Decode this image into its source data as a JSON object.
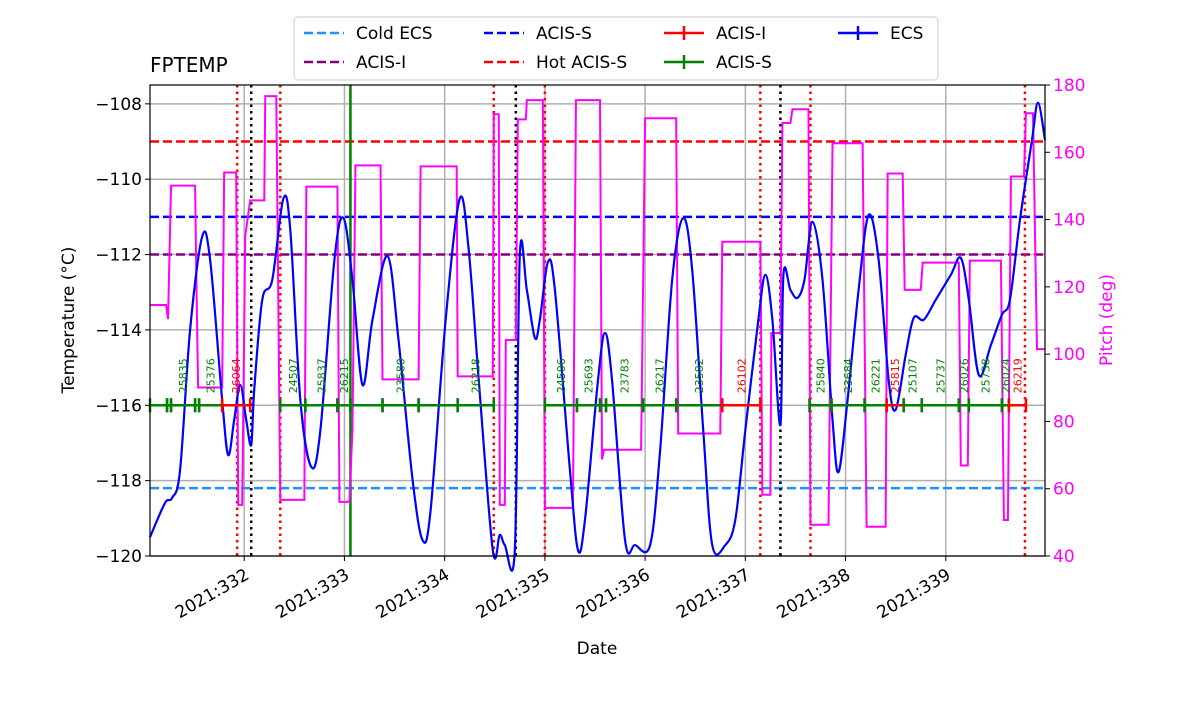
{
  "chart_data": {
    "type": "line",
    "title": "FPTEMP",
    "xlabel": "Date",
    "ylabel": "Temperature ($^\\circ$C)",
    "ylabel_display": "Temperature (°C)",
    "y2label": "Pitch (deg)",
    "xlim": [
      331.06,
      339.99
    ],
    "ylim": [
      -120,
      -107.5
    ],
    "y2lim": [
      40,
      180
    ],
    "grid": true,
    "legend_placement": "top-center",
    "xticks": [
      {
        "v": 332,
        "label": "2021:332"
      },
      {
        "v": 333,
        "label": "2021:333"
      },
      {
        "v": 334,
        "label": "2021:334"
      },
      {
        "v": 335,
        "label": "2021:335"
      },
      {
        "v": 336,
        "label": "2021:336"
      },
      {
        "v": 337,
        "label": "2021:337"
      },
      {
        "v": 338,
        "label": "2021:338"
      },
      {
        "v": 339,
        "label": "2021:339"
      }
    ],
    "yticks": [
      -120,
      -118,
      -116,
      -114,
      -112,
      -110,
      -108
    ],
    "ytick_labels": [
      "−120",
      "−118",
      "−116",
      "−114",
      "−112",
      "−110",
      "−108"
    ],
    "y2ticks": [
      40,
      60,
      80,
      100,
      120,
      140,
      160,
      180
    ],
    "colors": {
      "ecs": "#0000ff",
      "pitch": "#ff00ff",
      "cold_ecs": "#1e90ff",
      "acis_s_limit": "#0000ff",
      "acis_i_limit": "#800080",
      "hot_acis_s": "#ff0000",
      "acis_i_obs": "#ff0000",
      "acis_s_obs": "#008000",
      "grid": "#b0b0b0"
    },
    "limits": [
      {
        "name": "Cold ECS",
        "value": -118.2,
        "color": "#1e90ff"
      },
      {
        "name": "ACIS-S",
        "value": -111,
        "color": "#0000ff"
      },
      {
        "name": "ACIS-I",
        "value": -112,
        "color": "#800080"
      },
      {
        "name": "Hot ACIS-S",
        "value": -109,
        "color": "#ff0000"
      }
    ],
    "legend": [
      {
        "label": "Cold ECS",
        "color": "#1e90ff",
        "style": "dashed"
      },
      {
        "label": "ACIS-I",
        "color": "#800080",
        "style": "dashed"
      },
      {
        "label": "ACIS-S",
        "color": "#0000ff",
        "style": "dashed"
      },
      {
        "label": "Hot ACIS-S",
        "color": "#ff0000",
        "style": "dashed"
      },
      {
        "label": "ACIS-I",
        "color": "#ff0000",
        "style": "errorbar"
      },
      {
        "label": "ACIS-S",
        "color": "#008000",
        "style": "errorbar"
      },
      {
        "label": "ECS",
        "color": "#0000ff",
        "style": "errorbar"
      }
    ],
    "ecs_temperature": [
      [
        331.06,
        -119.5
      ],
      [
        331.21,
        -118.59
      ],
      [
        331.28,
        -118.46
      ],
      [
        331.36,
        -117.72
      ],
      [
        331.46,
        -114.0
      ],
      [
        331.58,
        -111.53
      ],
      [
        331.66,
        -112.14
      ],
      [
        331.78,
        -115.86
      ],
      [
        331.84,
        -117.32
      ],
      [
        331.9,
        -116.39
      ],
      [
        331.96,
        -115.46
      ],
      [
        332.02,
        -116.39
      ],
      [
        332.07,
        -117.05
      ],
      [
        332.1,
        -115.59
      ],
      [
        332.18,
        -113.2
      ],
      [
        332.28,
        -112.67
      ],
      [
        332.39,
        -110.52
      ],
      [
        332.46,
        -111.35
      ],
      [
        332.56,
        -115.86
      ],
      [
        332.67,
        -117.64
      ],
      [
        332.76,
        -116.66
      ],
      [
        332.9,
        -112.14
      ],
      [
        332.99,
        -111.03
      ],
      [
        333.08,
        -112.67
      ],
      [
        333.18,
        -115.46
      ],
      [
        333.28,
        -113.73
      ],
      [
        333.43,
        -112.04
      ],
      [
        333.54,
        -114.27
      ],
      [
        333.68,
        -117.98
      ],
      [
        333.78,
        -119.58
      ],
      [
        333.86,
        -118.78
      ],
      [
        334.01,
        -113.73
      ],
      [
        334.15,
        -110.52
      ],
      [
        334.24,
        -111.88
      ],
      [
        334.34,
        -115.33
      ],
      [
        334.48,
        -119.84
      ],
      [
        334.55,
        -119.44
      ],
      [
        334.6,
        -119.71
      ],
      [
        334.7,
        -119.84
      ],
      [
        334.75,
        -112.01
      ],
      [
        334.82,
        -112.94
      ],
      [
        334.9,
        -114.21
      ],
      [
        334.95,
        -113.73
      ],
      [
        335.03,
        -112.2
      ],
      [
        335.1,
        -112.94
      ],
      [
        335.25,
        -117.72
      ],
      [
        335.33,
        -119.84
      ],
      [
        335.4,
        -119.04
      ],
      [
        335.53,
        -115.33
      ],
      [
        335.6,
        -114.08
      ],
      [
        335.67,
        -115.33
      ],
      [
        335.8,
        -119.58
      ],
      [
        335.9,
        -119.71
      ],
      [
        336.05,
        -119.71
      ],
      [
        336.15,
        -117.19
      ],
      [
        336.27,
        -112.67
      ],
      [
        336.38,
        -111.03
      ],
      [
        336.47,
        -112.41
      ],
      [
        336.58,
        -116.66
      ],
      [
        336.67,
        -119.71
      ],
      [
        336.8,
        -119.71
      ],
      [
        336.9,
        -119.04
      ],
      [
        337.0,
        -116.66
      ],
      [
        337.13,
        -113.73
      ],
      [
        337.2,
        -112.54
      ],
      [
        337.27,
        -113.73
      ],
      [
        337.35,
        -116.52
      ],
      [
        337.38,
        -112.54
      ],
      [
        337.45,
        -112.94
      ],
      [
        337.52,
        -113.15
      ],
      [
        337.59,
        -112.67
      ],
      [
        337.67,
        -111.13
      ],
      [
        337.77,
        -112.67
      ],
      [
        337.87,
        -116.39
      ],
      [
        337.93,
        -117.77
      ],
      [
        338.02,
        -115.86
      ],
      [
        338.13,
        -112.94
      ],
      [
        338.23,
        -110.95
      ],
      [
        338.33,
        -112.14
      ],
      [
        338.43,
        -115.33
      ],
      [
        338.5,
        -116.12
      ],
      [
        338.6,
        -114.66
      ],
      [
        338.68,
        -113.68
      ],
      [
        338.78,
        -113.73
      ],
      [
        338.9,
        -113.2
      ],
      [
        339.05,
        -112.54
      ],
      [
        339.15,
        -112.09
      ],
      [
        339.23,
        -113.2
      ],
      [
        339.33,
        -115.2
      ],
      [
        339.45,
        -114.4
      ],
      [
        339.56,
        -113.6
      ],
      [
        339.64,
        -113.2
      ],
      [
        339.74,
        -111.08
      ],
      [
        339.86,
        -108.96
      ],
      [
        339.92,
        -107.97
      ],
      [
        339.99,
        -108.96
      ]
    ],
    "pitch": [
      [
        331.06,
        114.6
      ],
      [
        331.22,
        114.6
      ],
      [
        331.24,
        110.4
      ],
      [
        331.27,
        150.1
      ],
      [
        331.51,
        150.1
      ],
      [
        331.52,
        127.5
      ],
      [
        331.54,
        90.1
      ],
      [
        331.78,
        90.1
      ],
      [
        331.8,
        154.0
      ],
      [
        331.92,
        154.0
      ],
      [
        331.94,
        55.2
      ],
      [
        331.98,
        55.2
      ],
      [
        332.01,
        135.2
      ],
      [
        332.06,
        145.7
      ],
      [
        332.2,
        145.7
      ],
      [
        332.21,
        176.7
      ],
      [
        332.32,
        176.7
      ],
      [
        332.36,
        56.7
      ],
      [
        332.6,
        56.7
      ],
      [
        332.62,
        149.8
      ],
      [
        332.93,
        149.8
      ],
      [
        332.95,
        56.1
      ],
      [
        333.05,
        56.1
      ],
      [
        333.08,
        77.6
      ],
      [
        333.11,
        156.1
      ],
      [
        333.36,
        156.1
      ],
      [
        333.38,
        92.5
      ],
      [
        333.74,
        92.5
      ],
      [
        333.76,
        155.8
      ],
      [
        334.12,
        155.8
      ],
      [
        334.13,
        93.4
      ],
      [
        334.48,
        93.4
      ],
      [
        334.49,
        171.3
      ],
      [
        334.54,
        171.3
      ],
      [
        334.55,
        55.2
      ],
      [
        334.6,
        55.2
      ],
      [
        334.61,
        104.2
      ],
      [
        334.71,
        104.2
      ],
      [
        334.73,
        169.8
      ],
      [
        334.81,
        169.8
      ],
      [
        334.82,
        175.5
      ],
      [
        334.98,
        175.5
      ],
      [
        335.0,
        54.3
      ],
      [
        335.28,
        54.3
      ],
      [
        335.31,
        175.5
      ],
      [
        335.55,
        175.5
      ],
      [
        335.57,
        68.7
      ],
      [
        335.59,
        71.6
      ],
      [
        335.96,
        71.6
      ],
      [
        336.0,
        170.1
      ],
      [
        336.31,
        170.1
      ],
      [
        336.33,
        76.4
      ],
      [
        336.75,
        76.4
      ],
      [
        336.77,
        133.4
      ],
      [
        337.15,
        133.4
      ],
      [
        337.17,
        58.2
      ],
      [
        337.25,
        58.2
      ],
      [
        337.26,
        106.3
      ],
      [
        337.35,
        106.3
      ],
      [
        337.37,
        168.7
      ],
      [
        337.45,
        168.7
      ],
      [
        337.47,
        172.8
      ],
      [
        337.63,
        172.8
      ],
      [
        337.65,
        49.3
      ],
      [
        337.83,
        49.3
      ],
      [
        337.87,
        162.7
      ],
      [
        338.17,
        162.7
      ],
      [
        338.21,
        48.7
      ],
      [
        338.4,
        48.7
      ],
      [
        338.42,
        153.7
      ],
      [
        338.57,
        153.7
      ],
      [
        338.59,
        119.1
      ],
      [
        338.75,
        119.1
      ],
      [
        338.77,
        127.2
      ],
      [
        339.13,
        127.2
      ],
      [
        339.15,
        66.9
      ],
      [
        339.22,
        66.9
      ],
      [
        339.24,
        127.8
      ],
      [
        339.55,
        127.8
      ],
      [
        339.58,
        50.7
      ],
      [
        339.62,
        50.7
      ],
      [
        339.65,
        152.8
      ],
      [
        339.78,
        152.8
      ],
      [
        339.8,
        171.6
      ],
      [
        339.87,
        171.6
      ],
      [
        339.91,
        101.5
      ],
      [
        339.99,
        101.5
      ]
    ],
    "obs_level": -116,
    "observations": [
      {
        "obsid": "",
        "start": 331.06,
        "end": 331.23,
        "inst": "ACIS-S"
      },
      {
        "obsid": "",
        "start": 331.23,
        "end": 331.27,
        "inst": "ACIS-S"
      },
      {
        "obsid": "25835",
        "start": 331.27,
        "end": 331.51,
        "inst": "ACIS-S"
      },
      {
        "obsid": "",
        "start": 331.51,
        "end": 331.55,
        "inst": "ACIS-S"
      },
      {
        "obsid": "25376",
        "start": 331.55,
        "end": 331.78,
        "inst": "ACIS-S"
      },
      {
        "obsid": "26064",
        "start": 331.78,
        "end": 332.06,
        "inst": "ACIS-I"
      },
      {
        "obsid": "24507",
        "start": 332.36,
        "end": 332.61,
        "inst": "ACIS-S"
      },
      {
        "obsid": "25837",
        "start": 332.61,
        "end": 332.93,
        "inst": "ACIS-S"
      },
      {
        "obsid": "26215",
        "start": 332.93,
        "end": 333.06,
        "inst": "ACIS-S"
      },
      {
        "obsid": "",
        "start": 333.06,
        "end": 333.38,
        "inst": "ACIS-S"
      },
      {
        "obsid": "23580",
        "start": 333.38,
        "end": 333.74,
        "inst": "ACIS-S"
      },
      {
        "obsid": "",
        "start": 333.74,
        "end": 334.13,
        "inst": "ACIS-S"
      },
      {
        "obsid": "26218",
        "start": 334.13,
        "end": 334.49,
        "inst": "ACIS-S"
      },
      {
        "obsid": "24506",
        "start": 335.0,
        "end": 335.32,
        "inst": "ACIS-S"
      },
      {
        "obsid": "25693",
        "start": 335.32,
        "end": 335.55,
        "inst": "ACIS-S"
      },
      {
        "obsid": "",
        "start": 335.55,
        "end": 335.61,
        "inst": "ACIS-S"
      },
      {
        "obsid": "23783",
        "start": 335.61,
        "end": 335.98,
        "inst": "ACIS-S"
      },
      {
        "obsid": "26217",
        "start": 335.98,
        "end": 336.31,
        "inst": "ACIS-S"
      },
      {
        "obsid": "23582",
        "start": 336.31,
        "end": 336.77,
        "inst": "ACIS-S"
      },
      {
        "obsid": "26102",
        "start": 336.77,
        "end": 337.15,
        "inst": "ACIS-I"
      },
      {
        "obsid": "25840",
        "start": 337.64,
        "end": 337.86,
        "inst": "ACIS-S"
      },
      {
        "obsid": "23684",
        "start": 337.86,
        "end": 338.19,
        "inst": "ACIS-S"
      },
      {
        "obsid": "26221",
        "start": 338.19,
        "end": 338.41,
        "inst": "ACIS-S"
      },
      {
        "obsid": "25815",
        "start": 338.41,
        "end": 338.58,
        "inst": "ACIS-I"
      },
      {
        "obsid": "25107",
        "start": 338.58,
        "end": 338.76,
        "inst": "ACIS-S"
      },
      {
        "obsid": "25737",
        "start": 338.76,
        "end": 339.13,
        "inst": "ACIS-S"
      },
      {
        "obsid": "26026",
        "start": 339.13,
        "end": 339.23,
        "inst": "ACIS-S"
      },
      {
        "obsid": "25738",
        "start": 339.23,
        "end": 339.56,
        "inst": "ACIS-S"
      },
      {
        "obsid": "26024",
        "start": 339.56,
        "end": 339.63,
        "inst": "ACIS-S"
      },
      {
        "obsid": "26219",
        "start": 339.63,
        "end": 339.8,
        "inst": "ACIS-I"
      }
    ],
    "vlines": [
      {
        "x": 331.93,
        "color": "#ff0000",
        "style": "dotted"
      },
      {
        "x": 332.36,
        "color": "#ff0000",
        "style": "dotted"
      },
      {
        "x": 334.49,
        "color": "#ff0000",
        "style": "dotted"
      },
      {
        "x": 335.0,
        "color": "#ff0000",
        "style": "dotted"
      },
      {
        "x": 337.15,
        "color": "#ff0000",
        "style": "dotted"
      },
      {
        "x": 337.65,
        "color": "#ff0000",
        "style": "dotted"
      },
      {
        "x": 339.79,
        "color": "#ff0000",
        "style": "dotted"
      },
      {
        "x": 332.07,
        "color": "#000000",
        "style": "dotted"
      },
      {
        "x": 334.71,
        "color": "#000000",
        "style": "dotted"
      },
      {
        "x": 337.35,
        "color": "#000000",
        "style": "dotted"
      },
      {
        "x": 333.06,
        "color": "#008000",
        "style": "solid"
      }
    ]
  }
}
